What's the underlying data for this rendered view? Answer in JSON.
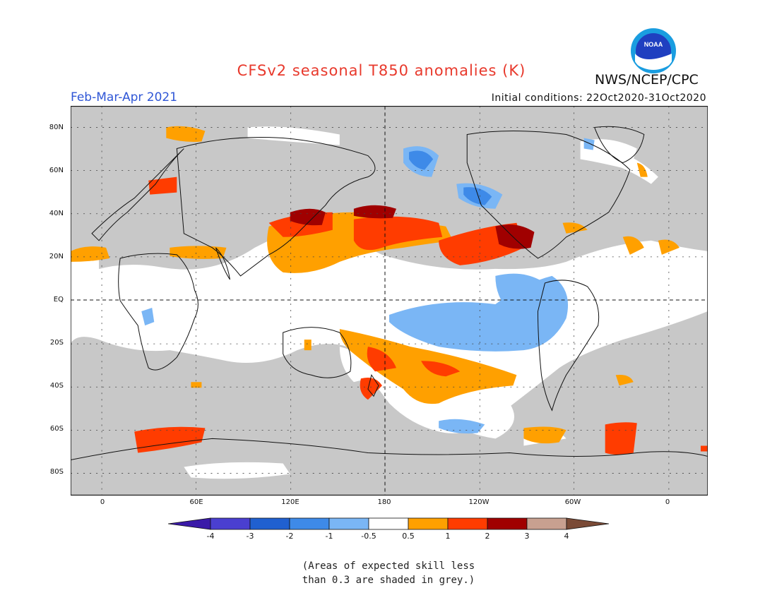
{
  "title": "CFSv2 seasonal T850 anomalies (K)",
  "agency": "NWS/NCEP/CPC",
  "logo_text": "NOAA",
  "period": "Feb-Mar-Apr 2021",
  "initial_conditions": "Initial conditions: 22Oct2020-31Oct2020",
  "lat_labels": [
    "80N",
    "60N",
    "40N",
    "20N",
    "EQ",
    "20S",
    "40S",
    "60S",
    "80S"
  ],
  "lon_labels": [
    "0",
    "60E",
    "120E",
    "180",
    "120W",
    "60W",
    "0"
  ],
  "colorbar": {
    "labels": [
      "-4",
      "-3",
      "-2",
      "-1",
      "-0.5",
      "0.5",
      "1",
      "2",
      "3",
      "4"
    ],
    "colors": [
      "#3a1aa8",
      "#4a3fd0",
      "#2060d0",
      "#3e8ae8",
      "#7ab6f5",
      "#ffffff",
      "#ffa000",
      "#ff3c00",
      "#a00000",
      "#c8a090",
      "#7a4a36"
    ]
  },
  "skill_mask_color": "#c8c8c8",
  "note": [
    "(Areas of expected skill less",
    "than 0.3 are shaded in grey.)"
  ]
}
